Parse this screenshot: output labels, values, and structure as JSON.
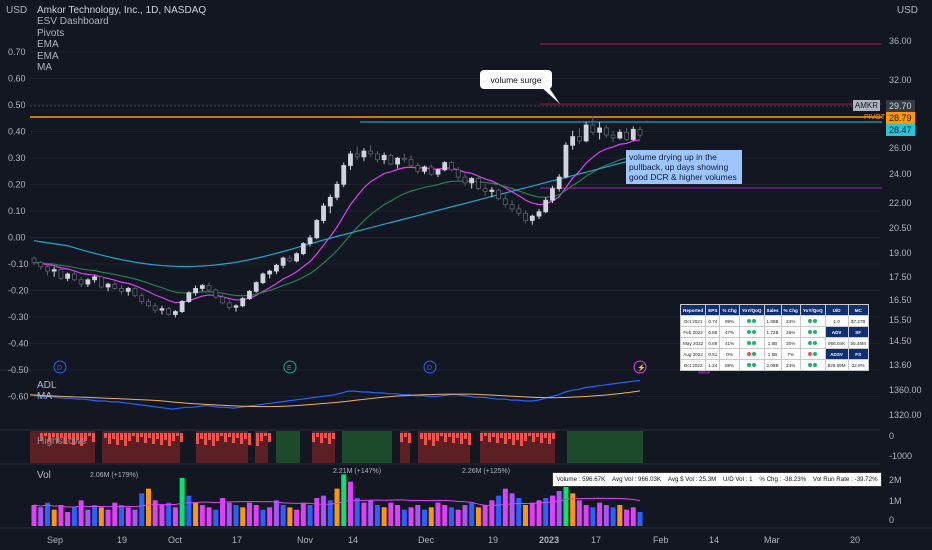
{
  "header": {
    "currency": "USD",
    "title": "Amkor Technology, Inc., 1D, NASDAQ",
    "indicators": [
      "ESV Dashboard",
      "Pivots",
      "EMA",
      "EMA",
      "MA"
    ]
  },
  "axes": {
    "left_ticks": [
      "0.70",
      "0.60",
      "0.50",
      "0.40",
      "0.30",
      "0.20",
      "0.10",
      "0.00",
      "-0.10",
      "-0.20",
      "-0.30",
      "-0.40",
      "-0.50",
      "-0.60"
    ],
    "right_currency": "USD",
    "right_price_ticks": [
      "36.00",
      "32.00",
      "28.00",
      "26.00",
      "24.00",
      "22.00",
      "20.50",
      "19.00",
      "17.50",
      "16.50",
      "15.50",
      "14.50",
      "13.60"
    ],
    "right_adl_ticks": [
      "1360.00",
      "1320.00"
    ],
    "right_osc_ticks": [
      "0",
      "-1000"
    ],
    "right_vol_ticks": [
      "2M",
      "1M",
      "0"
    ],
    "x_ticks": [
      "Sep",
      "19",
      "Oct",
      "17",
      "Nov",
      "14",
      "Dec",
      "19",
      "2023",
      "17",
      "Feb",
      "14",
      "Mar",
      "20"
    ]
  },
  "price_tags": {
    "symbol": "AMKR",
    "last": "29.70",
    "level_pivot": "28.79",
    "level_ema": "28.47",
    "pivot_label": "PIVOT"
  },
  "annotations": {
    "volume_surge": "volume surge",
    "note": [
      "volume drying up in the",
      "pullback, up days showing",
      "good DCR & higher volumes"
    ]
  },
  "event_markers": [
    "D",
    "E",
    "D",
    "⚡",
    "E"
  ],
  "panes": {
    "adl_label": "ADL",
    "adl_ma_label": "MA",
    "osc_label": "HighsLows",
    "vol_label": "Vol"
  },
  "volume_labels": [
    "2.06M (+179%)",
    "2.21M (+147%)",
    "2.26M (+125%)"
  ],
  "stats_bar": {
    "volume": "Volume : 596.67K",
    "avg_vol": "Avg Vol : 966.03K",
    "avg_dollar": "Avg $ Vol : 25.3M",
    "ud_vol": "U/D Vol : 1",
    "pct_chg": "% Chg : -38.23%",
    "run_rate": "Vol Run Rate : -39.72%"
  },
  "earnings_table": {
    "headers": [
      "Reported",
      "EPS",
      "% Chg",
      "YoY/QoQ",
      "Sales",
      "% Chg",
      "YoY/QoQ"
    ],
    "rows": [
      [
        "Oct 2021",
        "0.74",
        "99%",
        "",
        "1.68B",
        "24%",
        ""
      ],
      [
        "Feb 2022",
        "0.88",
        "47%",
        "",
        "1.72B",
        "26%",
        ""
      ],
      [
        "May 2022",
        "0.69",
        "41%",
        "",
        "1.6B",
        "20%",
        ""
      ],
      [
        "Aug 2022",
        "0.51",
        "0%",
        "",
        "1.5B",
        "7%",
        ""
      ],
      [
        "Oct 2022",
        "1.24",
        "68%",
        "",
        "2.08B",
        "24%",
        ""
      ]
    ],
    "side": [
      [
        "U/D",
        "MC"
      ],
      [
        "1.0",
        "$7.27B"
      ],
      [
        "ADV",
        "SF"
      ],
      [
        "966.04K",
        "55.46M"
      ],
      [
        "ADSV",
        "FS"
      ],
      [
        "$28.69M",
        "22.8%"
      ]
    ]
  },
  "colors": {
    "background": "#131722",
    "up": "#d1d4dc",
    "down": "#5d606b",
    "ema_fast": "#e040fb",
    "ema_mid": "#2e7d4f",
    "ma_slow": "#26a6c9",
    "pivot": "#ff9800",
    "teal": "#26c6da",
    "resist": "#b71c3c",
    "support": "#9c27b0",
    "adl": "#2962ff",
    "adl_ma": "#f0b264"
  },
  "chart_data": {
    "type": "candlestick",
    "title": "Amkor Technology, Inc., 1D, NASDAQ",
    "price_range": [
      13.6,
      37.5
    ],
    "levels": {
      "resistance": 36.0,
      "pivot": 28.79,
      "ema_level": 28.47,
      "support": 23.2
    },
    "ohlc": [
      [
        21.2,
        21.3,
        20.7,
        20.9
      ],
      [
        20.9,
        21.0,
        20.4,
        20.6
      ],
      [
        20.6,
        20.8,
        20.0,
        20.3
      ],
      [
        20.3,
        20.6,
        19.9,
        20.4
      ],
      [
        20.4,
        20.5,
        19.7,
        19.8
      ],
      [
        19.8,
        20.2,
        19.6,
        20.1
      ],
      [
        20.1,
        20.3,
        19.6,
        19.7
      ],
      [
        19.7,
        19.9,
        19.2,
        19.4
      ],
      [
        19.4,
        19.8,
        19.2,
        19.7
      ],
      [
        19.7,
        20.0,
        19.5,
        19.9
      ],
      [
        19.9,
        20.0,
        19.1,
        19.2
      ],
      [
        19.2,
        19.5,
        18.9,
        19.4
      ],
      [
        19.4,
        19.6,
        19.0,
        19.1
      ],
      [
        19.1,
        19.3,
        18.7,
        18.9
      ],
      [
        18.9,
        19.2,
        18.6,
        19.1
      ],
      [
        19.1,
        19.2,
        18.5,
        18.6
      ],
      [
        18.6,
        18.8,
        18.0,
        18.2
      ],
      [
        18.2,
        18.4,
        17.8,
        17.9
      ],
      [
        17.9,
        18.1,
        17.4,
        17.6
      ],
      [
        17.6,
        17.9,
        17.3,
        17.7
      ],
      [
        17.7,
        17.8,
        17.2,
        17.3
      ],
      [
        17.3,
        17.6,
        17.1,
        17.5
      ],
      [
        17.5,
        18.3,
        17.4,
        18.2
      ],
      [
        18.2,
        18.9,
        18.1,
        18.8
      ],
      [
        18.8,
        19.3,
        18.6,
        19.1
      ],
      [
        19.1,
        19.4,
        18.9,
        19.3
      ],
      [
        19.3,
        19.5,
        18.9,
        19.0
      ],
      [
        19.0,
        19.1,
        18.4,
        18.5
      ],
      [
        18.5,
        18.7,
        18.0,
        18.1
      ],
      [
        18.1,
        18.3,
        17.6,
        17.8
      ],
      [
        17.8,
        18.0,
        17.5,
        17.9
      ],
      [
        17.9,
        18.5,
        17.8,
        18.4
      ],
      [
        18.4,
        19.0,
        18.3,
        18.9
      ],
      [
        18.9,
        19.6,
        18.8,
        19.5
      ],
      [
        19.5,
        20.2,
        19.4,
        20.1
      ],
      [
        20.1,
        20.4,
        19.8,
        20.3
      ],
      [
        20.3,
        20.8,
        20.1,
        20.7
      ],
      [
        20.7,
        21.3,
        20.5,
        21.2
      ],
      [
        21.2,
        21.4,
        20.9,
        21.0
      ],
      [
        21.0,
        21.6,
        20.9,
        21.5
      ],
      [
        21.5,
        22.3,
        21.4,
        22.2
      ],
      [
        22.2,
        22.8,
        22.0,
        22.6
      ],
      [
        22.6,
        23.9,
        22.5,
        23.8
      ],
      [
        23.8,
        25.0,
        23.6,
        24.8
      ],
      [
        24.8,
        25.6,
        24.3,
        25.4
      ],
      [
        25.4,
        26.5,
        25.2,
        26.3
      ],
      [
        26.3,
        27.8,
        26.1,
        27.6
      ],
      [
        27.6,
        28.6,
        27.3,
        28.4
      ],
      [
        28.4,
        28.9,
        28.0,
        28.2
      ],
      [
        28.2,
        28.8,
        27.9,
        28.6
      ],
      [
        28.6,
        29.0,
        28.2,
        28.4
      ],
      [
        28.4,
        28.6,
        27.8,
        28.0
      ],
      [
        28.0,
        28.5,
        27.7,
        28.3
      ],
      [
        28.3,
        28.4,
        27.6,
        27.7
      ],
      [
        27.7,
        28.2,
        27.4,
        28.1
      ],
      [
        28.1,
        28.4,
        27.8,
        28.0
      ],
      [
        28.0,
        28.3,
        27.5,
        27.6
      ],
      [
        27.6,
        27.8,
        27.0,
        27.2
      ],
      [
        27.2,
        27.6,
        27.0,
        27.5
      ],
      [
        27.5,
        27.7,
        26.9,
        27.0
      ],
      [
        27.0,
        27.4,
        26.8,
        27.3
      ],
      [
        27.3,
        27.9,
        27.2,
        27.8
      ],
      [
        27.8,
        27.9,
        27.2,
        27.3
      ],
      [
        27.3,
        27.5,
        26.6,
        26.8
      ],
      [
        26.8,
        27.0,
        26.2,
        26.4
      ],
      [
        26.4,
        26.8,
        26.0,
        26.7
      ],
      [
        26.7,
        26.9,
        25.9,
        26.0
      ],
      [
        26.0,
        26.3,
        25.5,
        25.8
      ],
      [
        25.8,
        26.1,
        25.4,
        25.9
      ],
      [
        25.9,
        26.0,
        25.2,
        25.3
      ],
      [
        25.3,
        25.6,
        24.7,
        24.9
      ],
      [
        24.9,
        25.2,
        24.4,
        24.6
      ],
      [
        24.6,
        24.9,
        24.1,
        24.3
      ],
      [
        24.3,
        24.5,
        23.6,
        23.8
      ],
      [
        23.8,
        24.2,
        23.5,
        24.1
      ],
      [
        24.1,
        24.6,
        23.9,
        24.4
      ],
      [
        24.4,
        25.4,
        24.3,
        25.2
      ],
      [
        25.2,
        26.2,
        25.0,
        26.0
      ],
      [
        26.0,
        27.0,
        25.8,
        26.8
      ],
      [
        26.8,
        29.2,
        26.7,
        29.0
      ],
      [
        29.0,
        30.0,
        28.7,
        29.6
      ],
      [
        29.6,
        30.2,
        29.1,
        29.3
      ],
      [
        29.3,
        30.6,
        29.2,
        30.4
      ],
      [
        30.4,
        31.0,
        29.7,
        29.9
      ],
      [
        29.9,
        30.6,
        29.4,
        30.2
      ],
      [
        30.2,
        30.4,
        29.5,
        29.7
      ],
      [
        29.7,
        30.0,
        29.2,
        29.5
      ],
      [
        29.5,
        30.1,
        29.4,
        29.9
      ],
      [
        29.9,
        30.2,
        29.3,
        29.4
      ],
      [
        29.4,
        30.3,
        29.3,
        30.1
      ],
      [
        30.1,
        30.3,
        29.5,
        29.7
      ]
    ],
    "volume": [
      0.9,
      0.8,
      1.0,
      0.7,
      0.9,
      0.6,
      0.8,
      1.1,
      0.7,
      0.9,
      0.8,
      0.7,
      1.0,
      0.9,
      0.8,
      0.7,
      1.4,
      1.6,
      1.1,
      0.9,
      1.0,
      0.8,
      2.06,
      1.3,
      1.0,
      0.9,
      0.8,
      0.7,
      1.2,
      1.0,
      0.9,
      0.8,
      1.0,
      0.9,
      0.7,
      0.8,
      1.1,
      0.9,
      0.8,
      0.7,
      1.0,
      0.9,
      1.2,
      1.3,
      1.1,
      1.6,
      2.21,
      1.9,
      1.2,
      1.0,
      1.1,
      0.9,
      0.8,
      1.0,
      0.9,
      0.7,
      0.8,
      0.9,
      0.7,
      0.8,
      1.0,
      0.9,
      0.8,
      0.7,
      0.9,
      1.0,
      0.8,
      0.9,
      1.1,
      1.3,
      1.6,
      1.4,
      1.2,
      0.9,
      1.0,
      1.1,
      1.2,
      1.3,
      1.5,
      2.26,
      1.4,
      1.1,
      0.9,
      0.8,
      1.0,
      0.9,
      0.8,
      0.9,
      0.7,
      0.8,
      0.6
    ],
    "volume_highlight_index": [
      22,
      46,
      79
    ],
    "adl": [
      1352,
      1351,
      1350,
      1350,
      1349,
      1348,
      1348,
      1347,
      1347,
      1346,
      1345,
      1345,
      1344,
      1344,
      1343,
      1342,
      1341,
      1340,
      1339,
      1338,
      1337,
      1336,
      1337,
      1338,
      1338,
      1339,
      1340,
      1339,
      1338,
      1338,
      1337,
      1338,
      1339,
      1340,
      1341,
      1342,
      1343,
      1344,
      1345,
      1346,
      1347,
      1348,
      1349,
      1350,
      1351,
      1352,
      1354,
      1356,
      1356,
      1355,
      1355,
      1354,
      1354,
      1353,
      1353,
      1352,
      1352,
      1351,
      1351,
      1350,
      1350,
      1351,
      1352,
      1352,
      1351,
      1350,
      1349,
      1349,
      1348,
      1347,
      1347,
      1346,
      1346,
      1345,
      1345,
      1346,
      1348,
      1350,
      1352,
      1355,
      1357,
      1358,
      1360,
      1361,
      1362,
      1363,
      1364,
      1365,
      1366,
      1367,
      1368
    ]
  }
}
